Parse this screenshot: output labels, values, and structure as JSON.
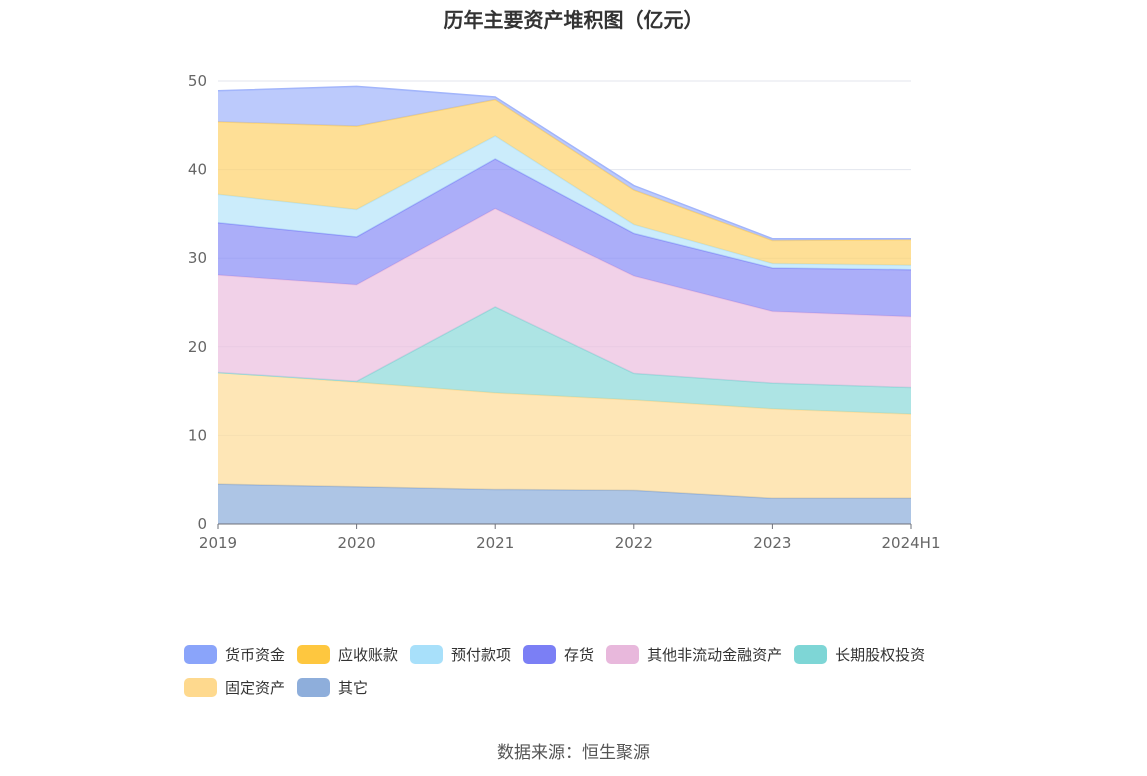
{
  "chart_data": {
    "type": "area",
    "title": "历年主要资产堆积图（亿元）",
    "stacked": true,
    "categories": [
      "2019",
      "2020",
      "2021",
      "2022",
      "2023",
      "2024H1"
    ],
    "ylim": [
      0,
      50
    ],
    "yticks": [
      0,
      10,
      20,
      30,
      40,
      50
    ],
    "grid": true,
    "legend_position": "bottom",
    "series": [
      {
        "name": "其它",
        "color": "#8eaedb",
        "values": [
          4.5,
          4.2,
          3.9,
          3.8,
          2.9,
          2.9
        ]
      },
      {
        "name": "固定资产",
        "color": "#fedd9a",
        "values": [
          12.6,
          11.8,
          10.9,
          10.2,
          10.1,
          9.5
        ]
      },
      {
        "name": "长期股权投资",
        "color": "#8dd9d9",
        "values": [
          0,
          0.1,
          9.7,
          3.0,
          2.9,
          3.0
        ]
      },
      {
        "name": "其他非流动金融资产",
        "color": "#ebbfdf",
        "values": [
          11.0,
          10.9,
          11.1,
          11.0,
          8.1,
          8.0
        ]
      },
      {
        "name": "存货",
        "color": "#8b8ff7",
        "values": [
          5.9,
          5.4,
          5.6,
          4.8,
          4.9,
          5.3
        ]
      },
      {
        "name": "预付款项",
        "color": "#b7e4f9",
        "values": [
          3.2,
          3.1,
          2.6,
          1.0,
          0.5,
          0.5
        ]
      },
      {
        "name": "应收账款",
        "color": "#fed36e",
        "values": [
          8.2,
          9.4,
          4.1,
          3.9,
          2.6,
          2.9
        ]
      },
      {
        "name": "货币资金",
        "color": "#a2b5fb",
        "values": [
          3.5,
          4.5,
          0.3,
          0.5,
          0.2,
          0.1
        ]
      }
    ]
  },
  "legend_rows": [
    [
      {
        "label": "货币资金",
        "color": "#8aa4fa"
      },
      {
        "label": "应收账款",
        "color": "#fec73f"
      },
      {
        "label": "预付款项",
        "color": "#a8e0fa"
      },
      {
        "label": "存货",
        "color": "#7b7ff5"
      },
      {
        "label": "其他非流动金融资产",
        "color": "#e8b8dc"
      },
      {
        "label": "长期股权投资",
        "color": "#7ed6d6"
      }
    ],
    [
      {
        "label": "固定资产",
        "color": "#fed98e"
      },
      {
        "label": "其它",
        "color": "#8eaedb"
      }
    ]
  ],
  "source": "数据来源：恒生聚源"
}
